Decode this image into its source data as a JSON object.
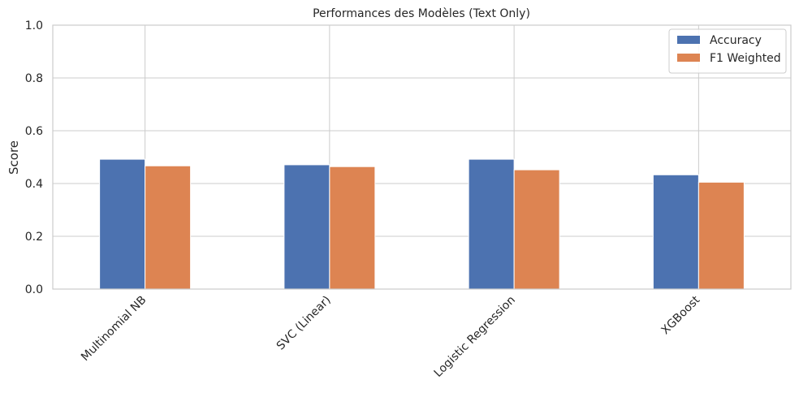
{
  "chart_data": {
    "type": "bar",
    "title": "Performances des Modèles (Text Only)",
    "xlabel": "",
    "ylabel": "Score",
    "ylim": [
      0,
      1.0
    ],
    "yticks": [
      "0.0",
      "0.2",
      "0.4",
      "0.6",
      "0.8",
      "1.0"
    ],
    "ytick_values": [
      0,
      0.2,
      0.4,
      0.6,
      0.8,
      1.0
    ],
    "grid": true,
    "legend_position": "top-right",
    "categories": [
      "Multinomial NB",
      "SVC (Linear)",
      "Logistic Regression",
      "XGBoost"
    ],
    "series": [
      {
        "name": "Accuracy",
        "color": "#4c72b0",
        "values": [
          0.492,
          0.471,
          0.492,
          0.433
        ]
      },
      {
        "name": "F1 Weighted",
        "color": "#dd8452",
        "values": [
          0.467,
          0.464,
          0.452,
          0.405
        ]
      }
    ]
  }
}
